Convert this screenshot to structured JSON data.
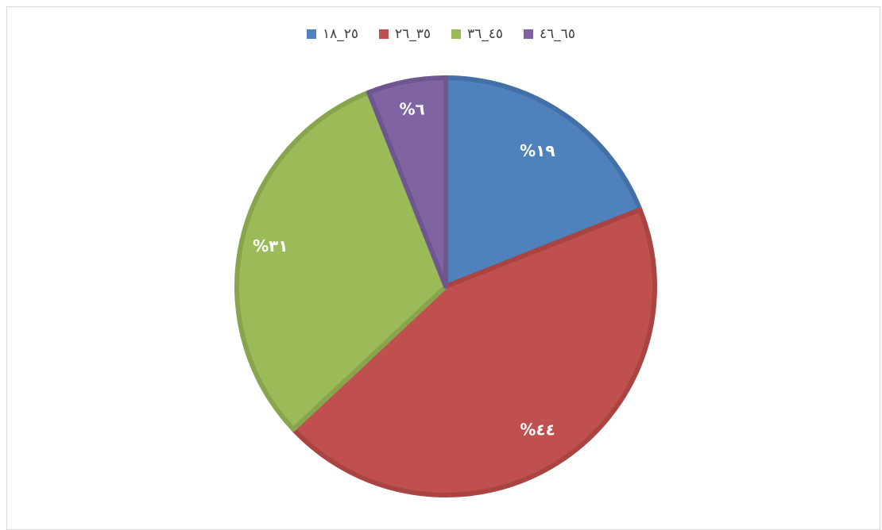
{
  "chart_data": {
    "type": "pie",
    "categories": [
      "٢٥_١٨",
      "٣٥_٢٦",
      "٤٥_٣٦",
      "٦٥_٤٦"
    ],
    "values": [
      19,
      44,
      31,
      6
    ],
    "data_labels": [
      "%١٩",
      "%٤٤",
      "%٣١",
      "%٦"
    ],
    "colors": [
      "#4F81BD",
      "#C0504D",
      "#9BBB59",
      "#8064A2"
    ],
    "border_colors": [
      "#4470A8",
      "#A94442",
      "#88A54D",
      "#6F5690"
    ],
    "legend_position": "top",
    "start_angle": "12 o'clock, clockwise"
  }
}
